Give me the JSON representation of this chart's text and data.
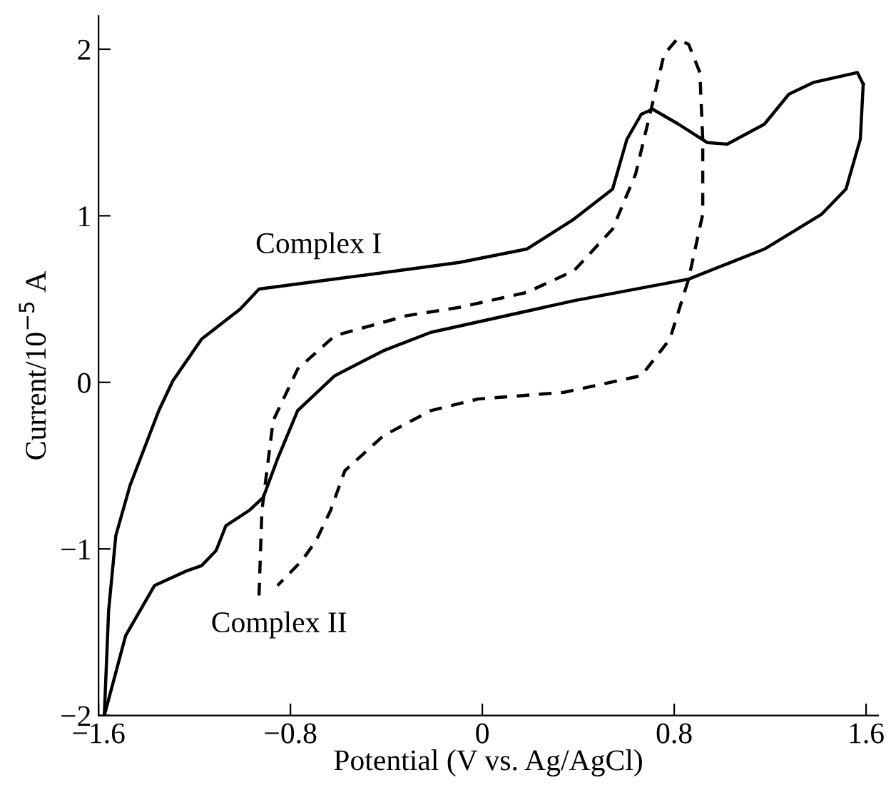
{
  "chart_data": {
    "type": "line",
    "xlabel": "Potential (V vs. Ag/AgCl)",
    "ylabel": "Current/10$^{−5}$ A",
    "xlim": [
      -1.6,
      1.65
    ],
    "ylim": [
      -2,
      2.2
    ],
    "xticks": [
      -1.6,
      -0.8,
      0,
      0.8,
      1.6
    ],
    "yticks": [
      -2,
      -1,
      0,
      1,
      2
    ],
    "grid": false,
    "legend": false,
    "marker": "none",
    "annotations": [
      {
        "text": "Complex I",
        "x": -0.6,
        "y": 0.62
      },
      {
        "text": "Complex II",
        "x": -0.93,
        "y": -1.28
      }
    ],
    "series": [
      {
        "color": "#000000",
        "line_style": "solid",
        "x": [
          -1.576,
          -1.558,
          -1.528,
          -1.469,
          -1.349,
          -1.29,
          -1.17,
          -1.009,
          -0.931,
          -0.615,
          -0.096,
          0.185,
          0.382,
          0.543,
          0.603,
          0.663,
          0.71,
          0.818,
          0.937,
          1.021,
          1.176,
          1.278,
          1.379,
          1.564,
          1.588
        ],
        "values": [
          -2.0,
          -1.37,
          -0.92,
          -0.62,
          -0.17,
          0.01,
          0.26,
          0.44,
          0.56,
          0.62,
          0.72,
          0.8,
          0.98,
          1.16,
          1.46,
          1.61,
          1.64,
          1.55,
          1.44,
          1.43,
          1.55,
          1.73,
          1.8,
          1.86,
          1.79
        ]
      },
      {
        "color": "#000000",
        "line_style": "solid",
        "x": [
          1.588,
          1.576,
          1.516,
          1.415,
          1.176,
          0.86,
          0.382,
          -0.215,
          -0.412,
          -0.615,
          -0.77,
          -0.854,
          -0.913,
          -0.973,
          -1.069,
          -1.11,
          -1.17,
          -1.23,
          -1.367,
          -1.487,
          -1.576
        ],
        "values": [
          1.79,
          1.46,
          1.16,
          1.01,
          0.8,
          0.62,
          0.49,
          0.3,
          0.19,
          0.04,
          -0.17,
          -0.46,
          -0.69,
          -0.77,
          -0.86,
          -1.01,
          -1.1,
          -1.13,
          -1.22,
          -1.52,
          -2.0
        ]
      },
      {
        "color": "#000000",
        "line_style": "dashed",
        "x": [
          -0.931,
          -0.919,
          -0.872,
          -0.77,
          -0.615,
          -0.316,
          -0.096,
          0.185,
          0.382,
          0.543,
          0.639,
          0.699,
          0.758,
          0.812,
          0.86,
          0.907,
          0.919,
          0.919,
          0.86,
          0.782,
          0.663,
          0.34,
          -0.018,
          -0.215,
          -0.412,
          -0.573,
          -0.633,
          -0.693,
          -0.752,
          -0.854
        ],
        "values": [
          -1.28,
          -0.77,
          -0.23,
          0.08,
          0.28,
          0.4,
          0.45,
          0.54,
          0.67,
          0.92,
          1.25,
          1.61,
          1.97,
          2.06,
          2.03,
          1.86,
          1.46,
          1.01,
          0.62,
          0.26,
          0.04,
          -0.06,
          -0.1,
          -0.17,
          -0.32,
          -0.53,
          -0.77,
          -0.95,
          -1.07,
          -1.22
        ]
      }
    ]
  }
}
